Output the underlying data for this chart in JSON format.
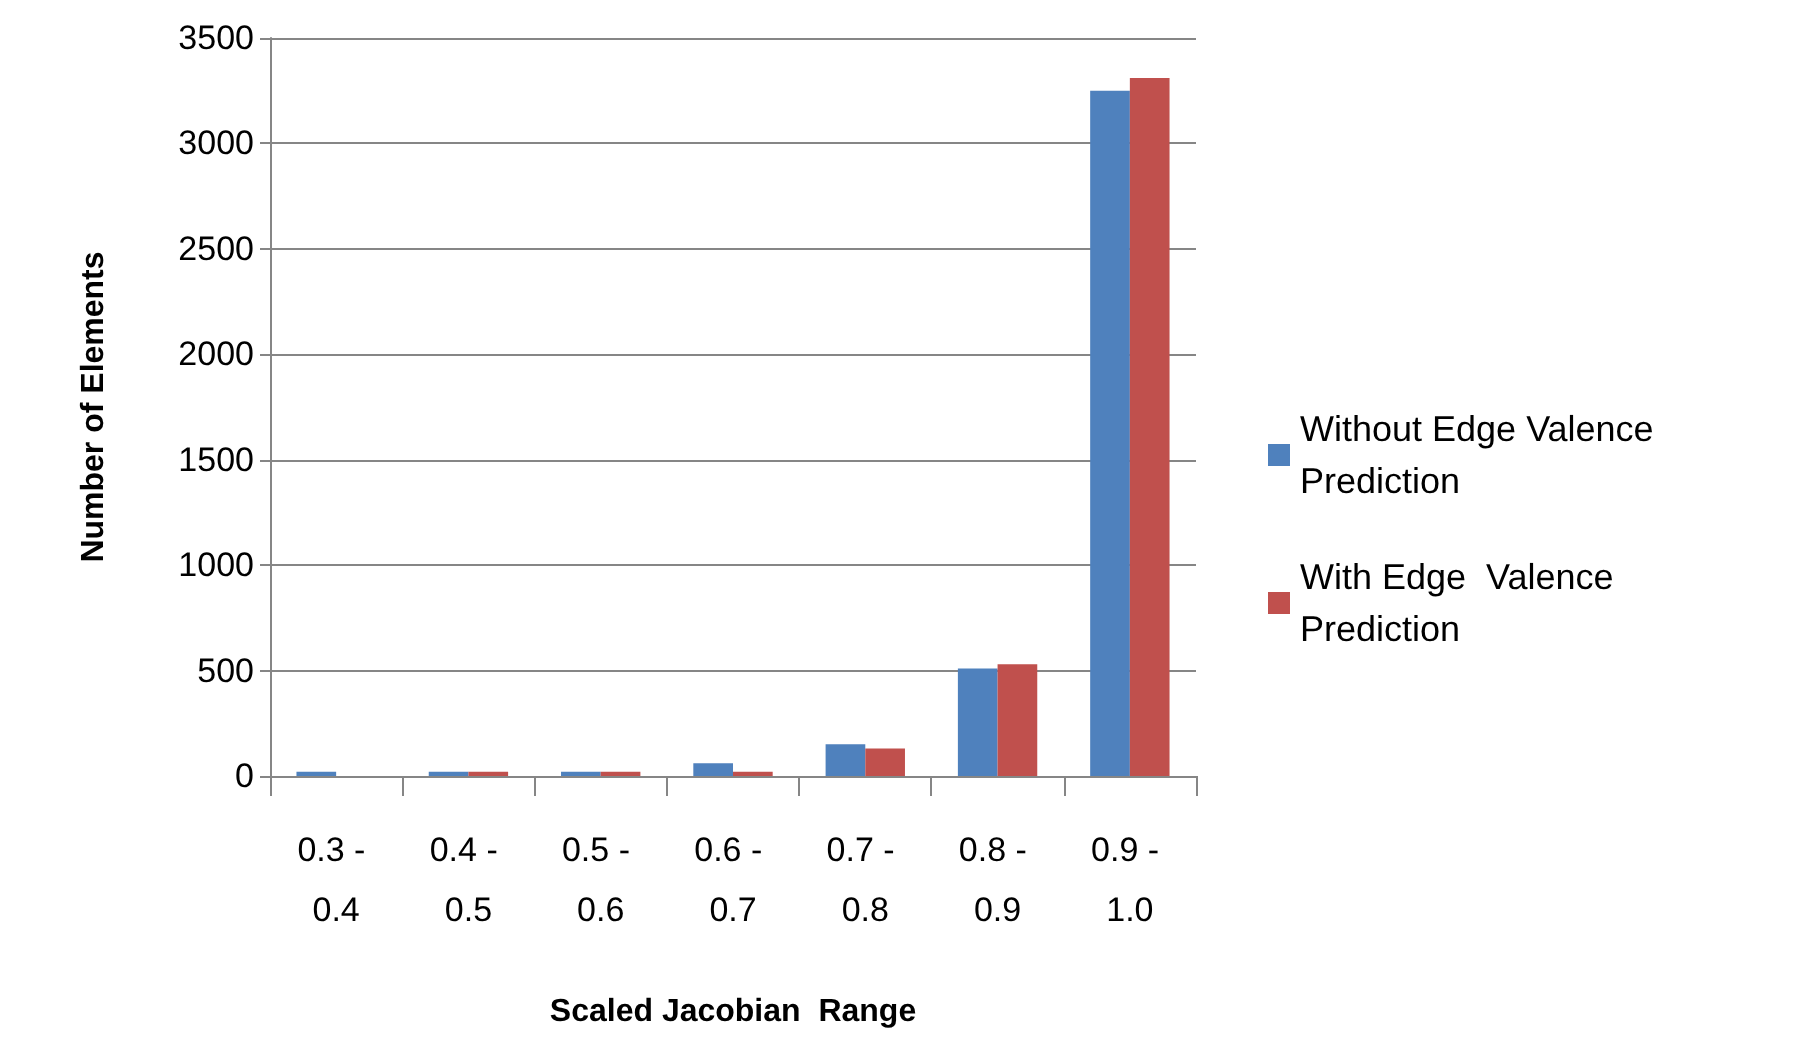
{
  "chart_data": {
    "type": "bar",
    "xlabel": "Scaled Jacobian  Range",
    "ylabel": "Number of Elements",
    "categories": [
      "0.3 - 0.4",
      "0.4 - 0.5",
      "0.5 - 0.6",
      "0.6 - 0.7",
      "0.7 - 0.8",
      "0.8 - 0.9",
      "0.9 - 1.0"
    ],
    "series": [
      {
        "name": "Without Edge Valence Prediction",
        "color": "#4f81bd",
        "values": [
          20,
          20,
          20,
          60,
          150,
          510,
          3250
        ]
      },
      {
        "name": "With Edge  Valence Prediction",
        "color": "#c0504d",
        "values": [
          0,
          20,
          20,
          20,
          130,
          530,
          3310
        ]
      }
    ],
    "ylim": [
      0,
      3500
    ],
    "yticks": [
      0,
      500,
      1000,
      1500,
      2000,
      2500,
      3000,
      3500
    ],
    "grid": "y",
    "legend": "right"
  }
}
